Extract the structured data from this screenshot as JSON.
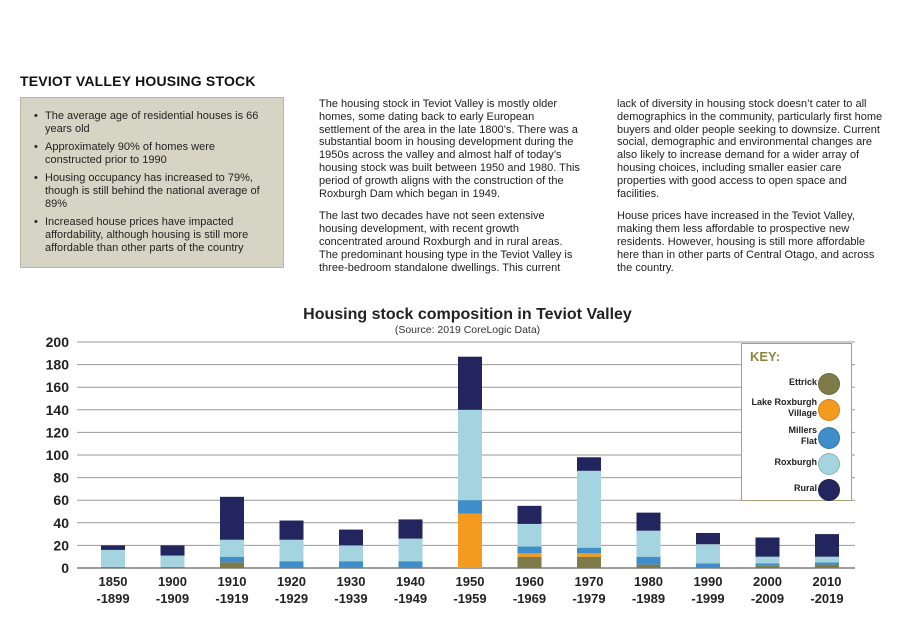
{
  "section": {
    "heading": "TEVIOT VALLEY HOUSING STOCK",
    "bullets": [
      "The average age of residential houses is 66 years old",
      "Approximately 90% of homes were constructed prior to 1990",
      "Housing occupancy has increased to 79%, though is still behind the national average of 89%",
      "Increased house prices have impacted affordability, although housing is still more affordable than other parts of the country"
    ],
    "column1": [
      "The housing stock in Teviot Valley is mostly older homes, some dating back to early European settlement of the area in the late 1800’s. There was a substantial boom in housing development during the 1950s across the valley and almost half of today’s housing stock was built between 1950 and 1980. This period of growth aligns with the construction of the Roxburgh Dam which began in 1949.",
      "The last two decades have not seen extensive housing development, with recent growth concentrated around Roxburgh and in rural areas. The predominant housing type in the Teviot Valley is three-bedroom standalone dwellings. This current"
    ],
    "column2": [
      "lack of diversity in housing stock doesn’t cater to all demographics in the community, particularly first home buyers and older people seeking to downsize. Current social, demographic and environmental changes are also likely to increase demand for a wider array of housing choices, including smaller easier care properties with good access to open space and facilities.",
      "House prices have increased in the Teviot Valley, making them less affordable to prospective new residents. However, housing is still more affordable here than in other parts of Central Otago, and across the country."
    ]
  },
  "chart_data": {
    "type": "bar",
    "stacked": true,
    "title": "Housing stock composition in Teviot Valley",
    "subtitle": "(Source: 2019 CoreLogic Data)",
    "xlabel": "",
    "ylabel": "",
    "ylim": [
      0,
      200
    ],
    "yticks": [
      0,
      20,
      40,
      60,
      80,
      100,
      120,
      140,
      160,
      180,
      200
    ],
    "grid": true,
    "legend_position": "right",
    "key_title": "KEY:",
    "categories": [
      [
        "1850",
        "-1899"
      ],
      [
        "1900",
        "-1909"
      ],
      [
        "1910",
        "-1919"
      ],
      [
        "1920",
        "-1929"
      ],
      [
        "1930",
        "-1939"
      ],
      [
        "1940",
        "-1949"
      ],
      [
        "1950",
        "-1959"
      ],
      [
        "1960",
        "-1969"
      ],
      [
        "1970",
        "-1979"
      ],
      [
        "1980",
        "-1989"
      ],
      [
        "1990",
        "-1999"
      ],
      [
        "2000",
        "-2009"
      ],
      [
        "2010",
        "-2019"
      ]
    ],
    "series": [
      {
        "name": "Ettrick",
        "label_lines": [
          "Ettrick"
        ],
        "color": "#7e7b48",
        "values": [
          0,
          0,
          5,
          0,
          0,
          0,
          0,
          10,
          10,
          3,
          0,
          2,
          3
        ]
      },
      {
        "name": "Lake Roxburgh Village",
        "label_lines": [
          "Lake Roxburgh",
          "Village"
        ],
        "color": "#f39a1f",
        "values": [
          0,
          0,
          0,
          0,
          0,
          0,
          48,
          3,
          3,
          0,
          0,
          0,
          0
        ]
      },
      {
        "name": "Millers Flat",
        "label_lines": [
          "Millers",
          "Flat"
        ],
        "color": "#3f8ec9",
        "values": [
          1,
          1,
          5,
          6,
          6,
          6,
          12,
          6,
          5,
          7,
          4,
          2,
          2
        ]
      },
      {
        "name": "Roxburgh",
        "label_lines": [
          "Roxburgh"
        ],
        "color": "#a4d4e0",
        "values": [
          15,
          10,
          15,
          19,
          14,
          20,
          80,
          20,
          68,
          23,
          17,
          6,
          5
        ]
      },
      {
        "name": "Rural",
        "label_lines": [
          "Rural"
        ],
        "color": "#23255e",
        "values": [
          4,
          9,
          38,
          17,
          14,
          17,
          47,
          16,
          12,
          16,
          10,
          17,
          20
        ]
      }
    ]
  }
}
